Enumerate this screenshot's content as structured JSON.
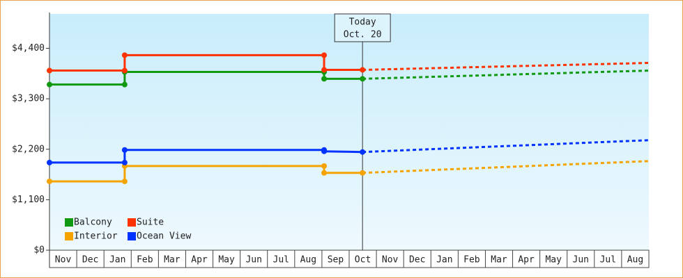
{
  "chart_data": {
    "type": "line",
    "categories": [
      "Nov",
      "Dec",
      "Jan",
      "Feb",
      "Mar",
      "Apr",
      "May",
      "Jun",
      "Jul",
      "Aug",
      "Sep",
      "Oct",
      "Nov",
      "Dec",
      "Jan",
      "Feb",
      "Mar",
      "Apr",
      "May",
      "Jun",
      "Jul",
      "Aug"
    ],
    "xlim": [
      0,
      22
    ],
    "ylim": [
      0,
      5150
    ],
    "yticks": [
      {
        "value": 0,
        "label": "$0"
      },
      {
        "value": 1100,
        "label": "$1,100"
      },
      {
        "value": 2200,
        "label": "$2,200"
      },
      {
        "value": 3300,
        "label": "$3,300"
      },
      {
        "value": 4400,
        "label": "$4,400"
      }
    ],
    "series": [
      {
        "name": "Balcony",
        "color": "#119911",
        "x": [
          0,
          2.76,
          2.76,
          10.08,
          10.08,
          11.49
        ],
        "values": [
          3610,
          3610,
          3885,
          3885,
          3735,
          3735
        ],
        "forecast_x": [
          11.49,
          22
        ],
        "forecast_values": [
          3735,
          3915
        ]
      },
      {
        "name": "Suite",
        "color": "#ff3300",
        "x": [
          0,
          2.76,
          2.76,
          10.08,
          10.08,
          11.49
        ],
        "values": [
          3915,
          3915,
          4250,
          4250,
          3930,
          3930
        ],
        "forecast_x": [
          11.49,
          22
        ],
        "forecast_values": [
          3930,
          4082
        ]
      },
      {
        "name": "Interior",
        "color": "#f5a300",
        "x": [
          0,
          2.76,
          2.76,
          10.08,
          10.08,
          11.49
        ],
        "values": [
          1500,
          1500,
          1835,
          1835,
          1685,
          1685
        ],
        "forecast_x": [
          11.49,
          22
        ],
        "forecast_values": [
          1685,
          1942
        ]
      },
      {
        "name": "Ocean View",
        "color": "#0033ff",
        "x": [
          0,
          2.76,
          2.76,
          10.08,
          10.08,
          11.49
        ],
        "values": [
          1910,
          1910,
          2185,
          2185,
          2155,
          2140
        ],
        "forecast_x": [
          11.49,
          22
        ],
        "forecast_values": [
          2140,
          2398
        ]
      }
    ],
    "annotation": {
      "x": 11.49,
      "lines": [
        "Today",
        "Oct. 20"
      ]
    }
  }
}
